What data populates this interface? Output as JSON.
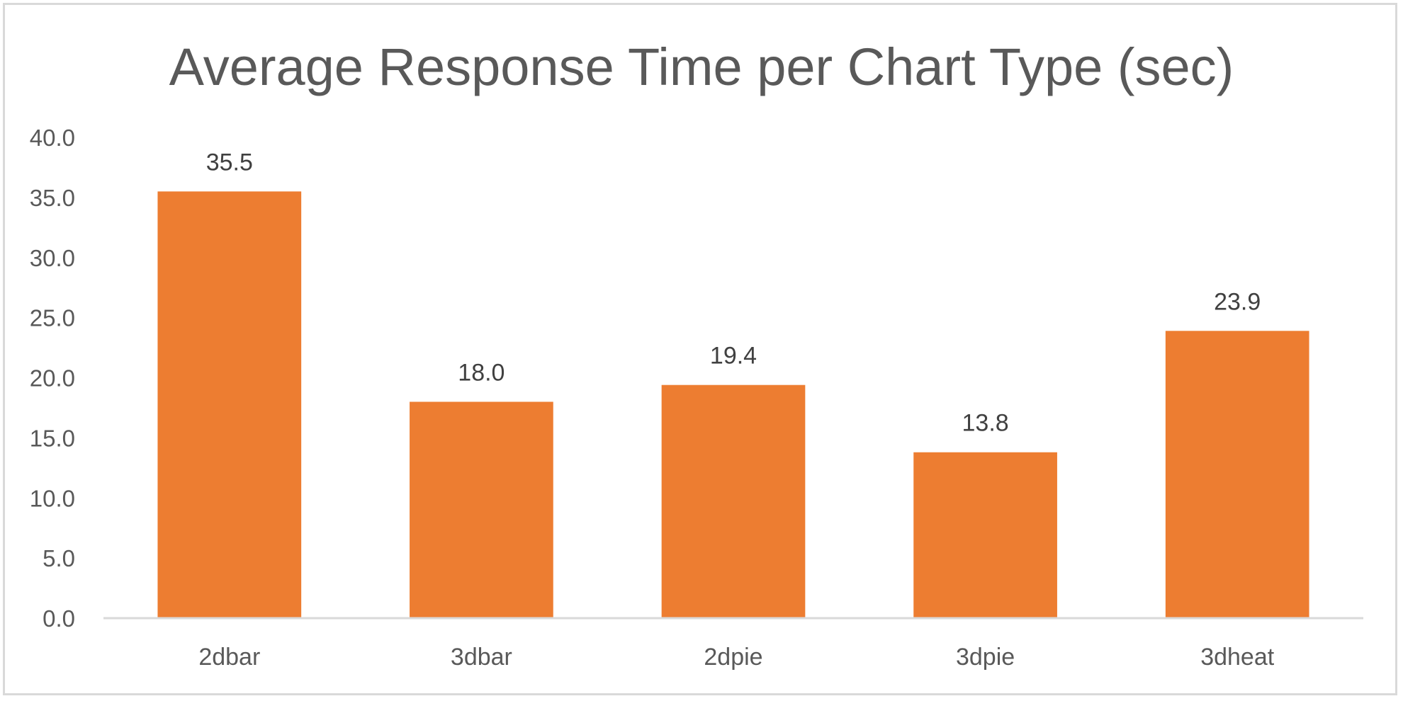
{
  "chart_data": {
    "type": "bar",
    "title": "Average Response Time per Chart Type (sec)",
    "categories": [
      "2dbar",
      "3dbar",
      "2dpie",
      "3dpie",
      "3dheat"
    ],
    "values": [
      35.5,
      18.0,
      19.4,
      13.8,
      23.9
    ],
    "data_labels": [
      "35.5",
      "18.0",
      "19.4",
      "13.8",
      "23.9"
    ],
    "yticks": [
      "0.0",
      "5.0",
      "10.0",
      "15.0",
      "20.0",
      "25.0",
      "30.0",
      "35.0",
      "40.0"
    ],
    "ylim": [
      0,
      40
    ],
    "xlabel": "",
    "ylabel": "",
    "grid": false,
    "legend": "none",
    "bar_color": "#ED7D31"
  }
}
